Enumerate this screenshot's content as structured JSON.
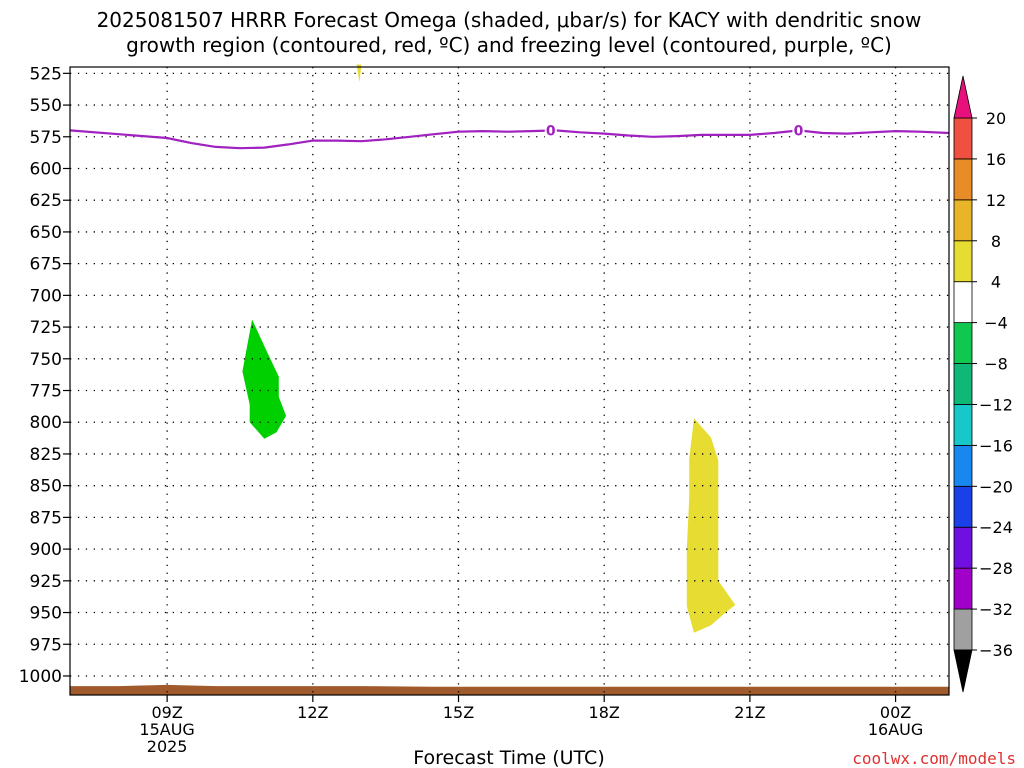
{
  "title_line1": "2025081507 HRRR Forecast Omega (shaded, μbar/s) for KACY with dendritic snow",
  "title_line2": "growth region (contoured, red, ºC) and freezing level (contoured, purple, ºC)",
  "credit": "coolwx.com/models",
  "chart_data": {
    "type": "area",
    "xlabel": "Forecast Time (UTC)",
    "ylabel": "",
    "xlim": [
      7.0,
      25.1
    ],
    "ylim": [
      1015,
      520
    ],
    "x_ticks": [
      {
        "x": 9,
        "lines": [
          "09Z",
          "15AUG",
          "2025"
        ]
      },
      {
        "x": 12,
        "lines": [
          "12Z"
        ]
      },
      {
        "x": 15,
        "lines": [
          "15Z"
        ]
      },
      {
        "x": 18,
        "lines": [
          "18Z"
        ]
      },
      {
        "x": 21,
        "lines": [
          "21Z"
        ]
      },
      {
        "x": 24,
        "lines": [
          "00Z",
          "16AUG"
        ]
      }
    ],
    "y_ticks": [
      525,
      550,
      575,
      600,
      625,
      650,
      675,
      700,
      725,
      750,
      775,
      800,
      825,
      850,
      875,
      900,
      925,
      950,
      975,
      1000
    ],
    "grid": true,
    "freezing_level": {
      "color": "#a020c0",
      "value_label": "0",
      "label_points": [
        [
          16.9,
          570
        ],
        [
          22.0,
          570
        ]
      ],
      "points": [
        [
          7.0,
          570
        ],
        [
          8.0,
          573
        ],
        [
          9.0,
          576
        ],
        [
          9.5,
          580
        ],
        [
          10.0,
          583
        ],
        [
          10.5,
          584
        ],
        [
          11.0,
          583.5
        ],
        [
          11.5,
          581
        ],
        [
          12.0,
          578
        ],
        [
          12.5,
          578
        ],
        [
          13.0,
          578.5
        ],
        [
          13.5,
          577
        ],
        [
          14.0,
          575
        ],
        [
          14.5,
          573
        ],
        [
          15.0,
          571
        ],
        [
          15.5,
          570.5
        ],
        [
          16.0,
          571
        ],
        [
          16.5,
          570.5
        ],
        [
          17.0,
          570
        ],
        [
          17.5,
          571.5
        ],
        [
          18.0,
          572.5
        ],
        [
          18.5,
          574
        ],
        [
          19.0,
          575
        ],
        [
          19.5,
          574.5
        ],
        [
          20.0,
          573.5
        ],
        [
          20.5,
          573.5
        ],
        [
          21.0,
          573.5
        ],
        [
          21.5,
          572
        ],
        [
          22.0,
          570
        ],
        [
          22.5,
          572
        ],
        [
          23.0,
          572.5
        ],
        [
          23.5,
          571.5
        ],
        [
          24.0,
          570.5
        ],
        [
          24.5,
          571
        ],
        [
          25.1,
          572
        ]
      ]
    },
    "omega_regions": [
      {
        "color": "#00d000",
        "range": [
          -8,
          -4
        ],
        "points": [
          [
            10.75,
            719
          ],
          [
            10.55,
            760
          ],
          [
            10.7,
            786
          ],
          [
            10.7,
            800
          ],
          [
            11.0,
            813
          ],
          [
            11.25,
            808
          ],
          [
            11.45,
            795
          ],
          [
            11.3,
            780
          ],
          [
            11.3,
            764
          ],
          [
            11.05,
            744
          ]
        ]
      },
      {
        "color": "#e6dc32",
        "range": [
          4,
          8
        ],
        "points": [
          [
            19.85,
            797
          ],
          [
            19.75,
            829
          ],
          [
            19.75,
            860
          ],
          [
            19.7,
            900
          ],
          [
            19.7,
            945
          ],
          [
            19.85,
            966
          ],
          [
            20.2,
            960
          ],
          [
            20.5,
            950
          ],
          [
            20.7,
            944
          ],
          [
            20.35,
            925
          ],
          [
            20.35,
            830
          ],
          [
            20.2,
            812
          ]
        ]
      },
      {
        "color": "#e6dc32",
        "range": [
          4,
          8
        ],
        "points": [
          [
            12.9,
            518
          ],
          [
            13.0,
            518
          ],
          [
            12.96,
            532
          ]
        ]
      }
    ],
    "terrain": {
      "color": "#a05a2c",
      "points": [
        [
          7.0,
          1008
        ],
        [
          8.0,
          1008
        ],
        [
          9.0,
          1007
        ],
        [
          10.0,
          1008
        ],
        [
          13.0,
          1008
        ],
        [
          14.5,
          1008.5
        ],
        [
          25.1,
          1008.5
        ]
      ]
    },
    "colorbar": {
      "levels": [
        -36,
        -32,
        -28,
        -24,
        -20,
        -16,
        -12,
        -8,
        -4,
        4,
        8,
        12,
        16,
        20
      ],
      "colors": [
        "#a0a0a0",
        "#a000c8",
        "#7010e0",
        "#1a40e8",
        "#1888f0",
        "#18c8c8",
        "#10b878",
        "#10c850",
        "#ffffff",
        "#e6dc32",
        "#e8b428",
        "#e88c28",
        "#f05040"
      ],
      "under_color": "#000000",
      "over_color": "#e8107a"
    }
  }
}
